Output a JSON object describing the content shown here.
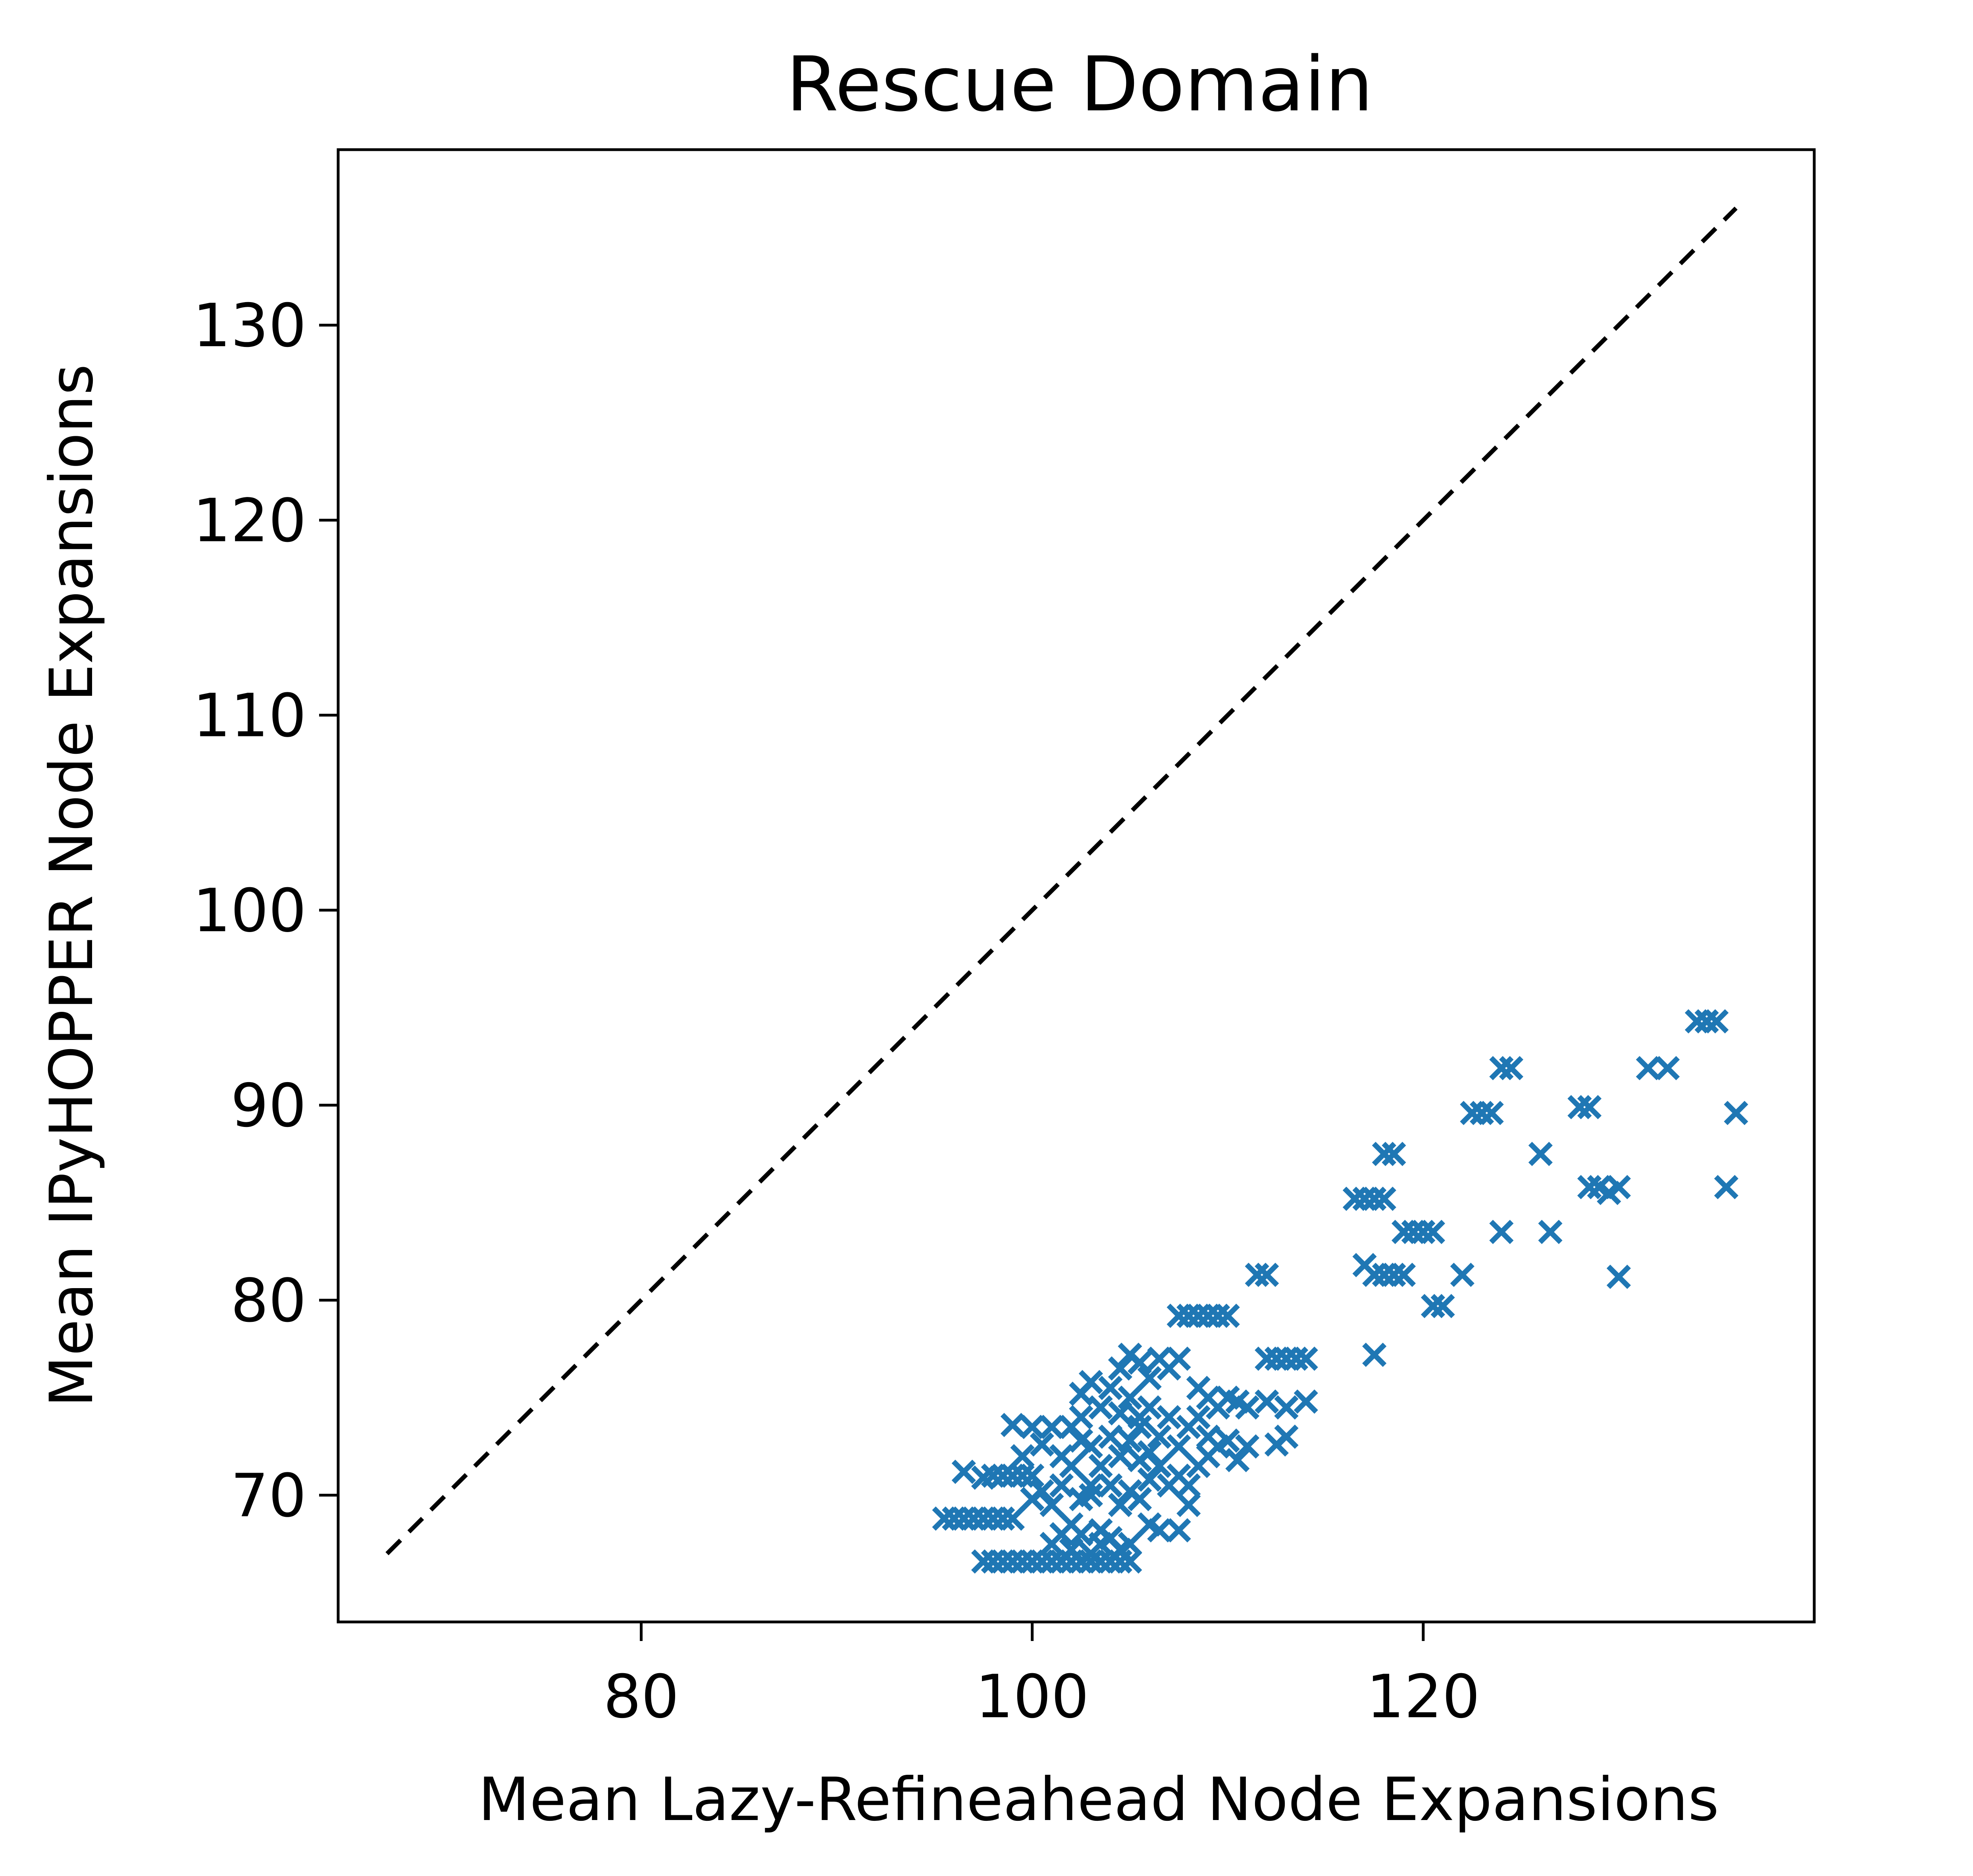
{
  "chart_data": {
    "type": "scatter",
    "title": "Rescue Domain",
    "xlabel": "Mean Lazy-Refineahead Node Expansions",
    "ylabel": "Mean IPyHOPPER Node Expansions",
    "xlim": [
      64.5,
      140.0
    ],
    "ylim": [
      63.5,
      139.0
    ],
    "xticks": [
      80,
      100,
      120
    ],
    "yticks": [
      70,
      80,
      90,
      100,
      110,
      120,
      130
    ],
    "xtick_labels": [
      "80",
      "100",
      "120"
    ],
    "ytick_labels": [
      "70",
      "80",
      "90",
      "100",
      "110",
      "120",
      "130"
    ],
    "grid": false,
    "marker": "x",
    "marker_color": "#1f77b4",
    "reference_line": {
      "style": "dashed",
      "color": "#000000",
      "from": [
        67,
        67
      ],
      "to": [
        136,
        136
      ]
    },
    "series": [
      {
        "points": [
          [
            95.5,
            68.8
          ],
          [
            96.0,
            68.8
          ],
          [
            96.5,
            68.8
          ],
          [
            97.0,
            68.8
          ],
          [
            97.5,
            68.8
          ],
          [
            98.0,
            68.8
          ],
          [
            98.5,
            68.8
          ],
          [
            99.0,
            68.8
          ],
          [
            96.5,
            71.2
          ],
          [
            97.5,
            70.9
          ],
          [
            98.0,
            71.0
          ],
          [
            98.5,
            71.0
          ],
          [
            99.0,
            71.0
          ],
          [
            99.5,
            71.0
          ],
          [
            100.0,
            71.0
          ],
          [
            97.5,
            66.6
          ],
          [
            98.0,
            66.6
          ],
          [
            98.5,
            66.6
          ],
          [
            99.0,
            66.6
          ],
          [
            99.5,
            66.6
          ],
          [
            100.0,
            66.6
          ],
          [
            100.5,
            66.6
          ],
          [
            101.0,
            66.6
          ],
          [
            101.5,
            66.6
          ],
          [
            102.0,
            66.6
          ],
          [
            102.5,
            66.6
          ],
          [
            103.0,
            66.6
          ],
          [
            103.5,
            66.6
          ],
          [
            104.0,
            66.6
          ],
          [
            104.5,
            66.6
          ],
          [
            105.0,
            66.6
          ],
          [
            99.0,
            73.6
          ],
          [
            99.5,
            72.0
          ],
          [
            100.0,
            73.5
          ],
          [
            100.5,
            72.6
          ],
          [
            101.0,
            73.5
          ],
          [
            101.5,
            72.0
          ],
          [
            102.0,
            73.5
          ],
          [
            102.5,
            74.0
          ],
          [
            100.0,
            69.8
          ],
          [
            100.5,
            70.2
          ],
          [
            101.0,
            69.5
          ],
          [
            101.5,
            70.5
          ],
          [
            102.0,
            68.5
          ],
          [
            102.5,
            69.8
          ],
          [
            103.0,
            70.5
          ],
          [
            103.5,
            68.2
          ],
          [
            101.0,
            67.5
          ],
          [
            101.5,
            68.0
          ],
          [
            102.0,
            67.2
          ],
          [
            102.5,
            68.0
          ],
          [
            103.0,
            67.0
          ],
          [
            103.5,
            67.5
          ],
          [
            104.0,
            67.8
          ],
          [
            104.5,
            67.2
          ],
          [
            102.5,
            75.2
          ],
          [
            103.0,
            75.8
          ],
          [
            103.5,
            74.5
          ],
          [
            104.0,
            75.5
          ],
          [
            104.5,
            74.2
          ],
          [
            105.0,
            75.0
          ],
          [
            105.5,
            74.0
          ],
          [
            103.0,
            72.5
          ],
          [
            103.5,
            71.5
          ],
          [
            104.0,
            73.0
          ],
          [
            104.5,
            72.0
          ],
          [
            105.0,
            72.8
          ],
          [
            105.5,
            71.8
          ],
          [
            106.0,
            72.2
          ],
          [
            102.0,
            71.5
          ],
          [
            102.5,
            72.8
          ],
          [
            103.0,
            70.0
          ],
          [
            104.0,
            70.5
          ],
          [
            104.5,
            69.5
          ],
          [
            105.0,
            70.2
          ],
          [
            105.5,
            69.8
          ],
          [
            104.5,
            76.5
          ],
          [
            105.0,
            77.2
          ],
          [
            105.5,
            76.8
          ],
          [
            106.0,
            76.0
          ],
          [
            106.5,
            77.0
          ],
          [
            107.0,
            76.5
          ],
          [
            107.5,
            77.0
          ],
          [
            105.5,
            73.5
          ],
          [
            106.0,
            74.5
          ],
          [
            106.5,
            73.0
          ],
          [
            107.0,
            74.0
          ],
          [
            107.5,
            72.5
          ],
          [
            108.0,
            73.5
          ],
          [
            108.5,
            74.0
          ],
          [
            106.0,
            70.8
          ],
          [
            106.5,
            71.5
          ],
          [
            107.0,
            70.5
          ],
          [
            107.5,
            71.0
          ],
          [
            108.0,
            70.5
          ],
          [
            108.5,
            71.5
          ],
          [
            109.0,
            72.0
          ],
          [
            105.0,
            67.5
          ],
          [
            106.0,
            68.5
          ],
          [
            106.5,
            68.2
          ],
          [
            107.5,
            68.2
          ],
          [
            108.0,
            69.5
          ],
          [
            107.5,
            79.2
          ],
          [
            108.0,
            79.2
          ],
          [
            108.5,
            79.2
          ],
          [
            109.0,
            79.2
          ],
          [
            109.5,
            79.2
          ],
          [
            110.0,
            79.2
          ],
          [
            108.5,
            75.5
          ],
          [
            109.0,
            75.0
          ],
          [
            109.5,
            74.5
          ],
          [
            110.0,
            75.0
          ],
          [
            110.5,
            74.8
          ],
          [
            111.0,
            74.5
          ],
          [
            109.0,
            73.0
          ],
          [
            109.5,
            72.5
          ],
          [
            110.0,
            72.8
          ],
          [
            110.5,
            71.8
          ],
          [
            111.0,
            72.5
          ],
          [
            111.5,
            81.3
          ],
          [
            112.0,
            81.3
          ],
          [
            112.0,
            77.0
          ],
          [
            112.5,
            77.0
          ],
          [
            113.0,
            77.0
          ],
          [
            113.5,
            77.0
          ],
          [
            114.0,
            77.0
          ],
          [
            112.0,
            74.8
          ],
          [
            113.0,
            74.5
          ],
          [
            114.0,
            74.8
          ],
          [
            112.5,
            72.6
          ],
          [
            113.0,
            73.0
          ],
          [
            116.5,
            85.2
          ],
          [
            117.0,
            85.2
          ],
          [
            117.5,
            85.2
          ],
          [
            118.0,
            85.2
          ],
          [
            118.0,
            87.5
          ],
          [
            118.5,
            87.5
          ],
          [
            117.0,
            81.8
          ],
          [
            117.5,
            81.3
          ],
          [
            118.0,
            81.3
          ],
          [
            118.5,
            81.3
          ],
          [
            119.0,
            81.3
          ],
          [
            119.0,
            83.5
          ],
          [
            119.5,
            83.5
          ],
          [
            120.0,
            83.5
          ],
          [
            120.5,
            83.5
          ],
          [
            117.5,
            77.2
          ],
          [
            120.5,
            79.7
          ],
          [
            121.0,
            79.7
          ],
          [
            122.0,
            81.3
          ],
          [
            122.5,
            89.6
          ],
          [
            123.0,
            89.6
          ],
          [
            123.5,
            89.6
          ],
          [
            124.0,
            91.9
          ],
          [
            124.5,
            91.9
          ],
          [
            124.0,
            83.5
          ],
          [
            126.0,
            87.5
          ],
          [
            126.5,
            83.5
          ],
          [
            128.0,
            89.9
          ],
          [
            128.5,
            89.9
          ],
          [
            128.5,
            85.8
          ],
          [
            129.0,
            85.8
          ],
          [
            129.5,
            85.5
          ],
          [
            130.0,
            85.8
          ],
          [
            130.0,
            81.2
          ],
          [
            131.5,
            91.9
          ],
          [
            132.5,
            91.9
          ],
          [
            134.0,
            94.3
          ],
          [
            134.5,
            94.3
          ],
          [
            135.0,
            94.3
          ],
          [
            135.5,
            85.8
          ],
          [
            136.0,
            89.6
          ]
        ]
      }
    ]
  }
}
